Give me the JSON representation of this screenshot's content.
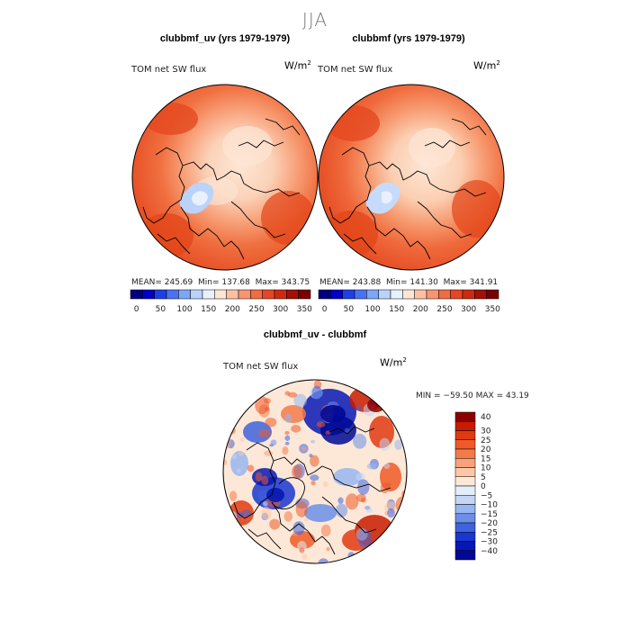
{
  "season": "JJA",
  "panels": [
    {
      "title": "clubbmf_uv (yrs 1979-1979)",
      "variable": "TOM net SW flux",
      "units": "W/m",
      "units_exp": "2",
      "stats": {
        "mean_label": "MEAN=",
        "mean": "245.69",
        "min_label": "Min=",
        "min": "137.68",
        "max_label": "Max=",
        "max": "343.75"
      },
      "colorbar": {
        "colors": [
          "#00007f",
          "#0000c8",
          "#1f3fe6",
          "#4a72f0",
          "#7ea6f6",
          "#b9d3fb",
          "#e8f1fd",
          "#fde6d6",
          "#fbc0a3",
          "#f79570",
          "#f06c45",
          "#e54626",
          "#cc2a13",
          "#a31005",
          "#7a0000"
        ],
        "tick_labels": [
          "0",
          "50",
          "100",
          "150",
          "200",
          "250",
          "300",
          "350"
        ]
      }
    },
    {
      "title": "clubbmf (yrs 1979-1979)",
      "variable": "TOM net SW flux",
      "units": "W/m",
      "units_exp": "2",
      "stats": {
        "mean_label": "MEAN=",
        "mean": "243.88",
        "min_label": "Min=",
        "min": "141.30",
        "max_label": "Max=",
        "max": "341.91"
      },
      "colorbar": {
        "colors": [
          "#00007f",
          "#0000c8",
          "#1f3fe6",
          "#4a72f0",
          "#7ea6f6",
          "#b9d3fb",
          "#e8f1fd",
          "#fde6d6",
          "#fbc0a3",
          "#f79570",
          "#f06c45",
          "#e54626",
          "#cc2a13",
          "#a31005",
          "#7a0000"
        ],
        "tick_labels": [
          "0",
          "50",
          "100",
          "150",
          "200",
          "250",
          "300",
          "350"
        ]
      }
    }
  ],
  "difference": {
    "title": "clubbmf_uv - clubbmf",
    "variable": "TOM net SW flux",
    "units": "W/m",
    "units_exp": "2",
    "stats": {
      "min_label": "MIN =",
      "min": "−59.50",
      "max_label": "MAX =",
      "max": "43.19"
    },
    "colorbar": {
      "colors_top_to_bottom": [
        "#8c0000",
        "#c81b00",
        "#e13a10",
        "#ef5a28",
        "#f47a48",
        "#f8a17a",
        "#fbc7a9",
        "#fde8d8",
        "#e3edfb",
        "#c3d6f6",
        "#98b6f0",
        "#6b8fe8",
        "#3e63de",
        "#1936d0",
        "#0717b4",
        "#000896"
      ],
      "tick_labels_top_to_bottom": [
        "40",
        "30",
        "25",
        "20",
        "15",
        "10",
        "5",
        "0",
        "−5",
        "−10",
        "−15",
        "−20",
        "−25",
        "−30",
        "−40"
      ]
    }
  },
  "chart_data": [
    {
      "type": "heatmap",
      "projection": "north polar stereographic",
      "title": "clubbmf_uv (yrs 1979-1979)",
      "variable": "TOM net SW flux",
      "units": "W/m2",
      "season": "JJA",
      "mean": 245.69,
      "min": 137.68,
      "max": 343.75,
      "color_levels": [
        0,
        25,
        50,
        75,
        100,
        125,
        150,
        175,
        200,
        225,
        250,
        275,
        300,
        325,
        350
      ],
      "pattern_description_values": {
        "polar_cap_approx": 180,
        "greenland_approx": 140,
        "midlatitude_ocean_approx": 300,
        "land_rim_approx": 260
      }
    },
    {
      "type": "heatmap",
      "projection": "north polar stereographic",
      "title": "clubbmf (yrs 1979-1979)",
      "variable": "TOM net SW flux",
      "units": "W/m2",
      "season": "JJA",
      "mean": 243.88,
      "min": 141.3,
      "max": 341.91,
      "color_levels": [
        0,
        25,
        50,
        75,
        100,
        125,
        150,
        175,
        200,
        225,
        250,
        275,
        300,
        325,
        350
      ],
      "pattern_description_values": {
        "polar_cap_approx": 180,
        "greenland_approx": 145,
        "midlatitude_ocean_approx": 300,
        "land_rim_approx": 260
      }
    },
    {
      "type": "heatmap",
      "projection": "north polar stereographic",
      "title": "clubbmf_uv - clubbmf",
      "variable": "TOM net SW flux",
      "units": "W/m2",
      "min": -59.5,
      "max": 43.19,
      "color_levels": [
        -40,
        -30,
        -25,
        -20,
        -15,
        -10,
        -5,
        0,
        5,
        10,
        15,
        20,
        25,
        30,
        40
      ]
    }
  ]
}
